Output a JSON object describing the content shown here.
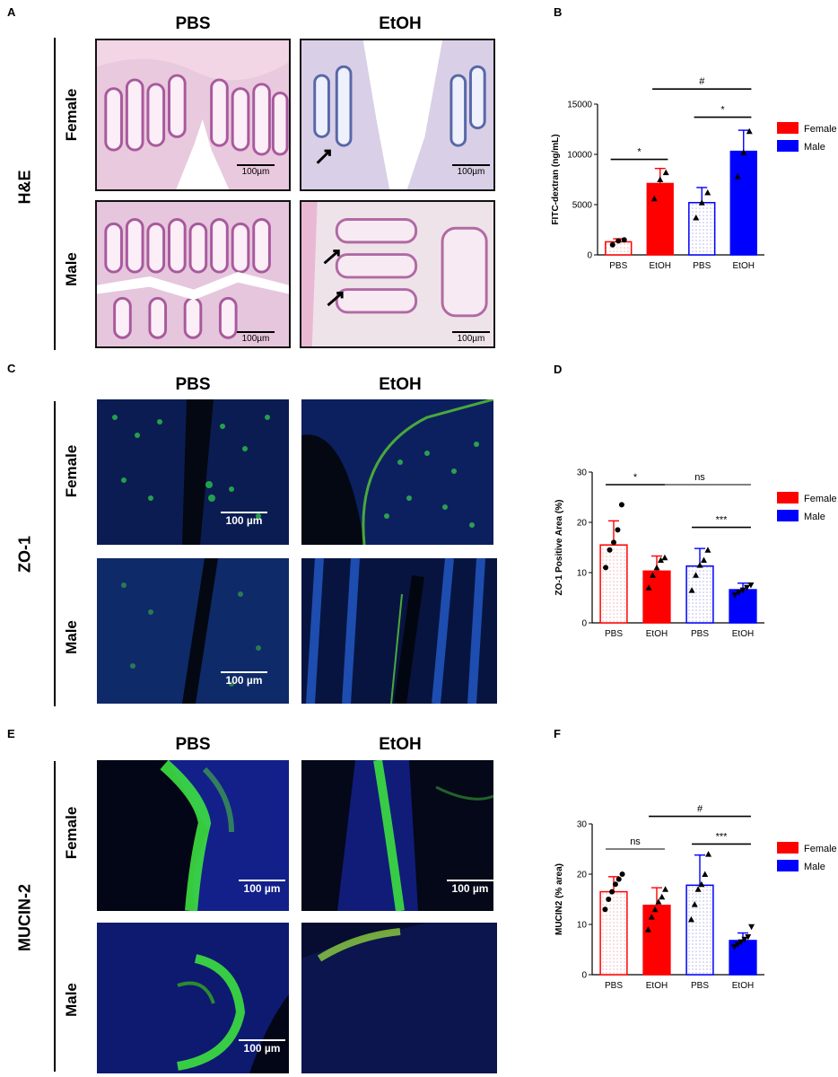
{
  "panels": {
    "A": {
      "label": "A",
      "stain": "H&E",
      "col_headers": [
        "PBS",
        "EtOH"
      ],
      "row_headers": [
        "Female",
        "Male"
      ],
      "scalebar_labels": [
        "100µm",
        "100µm",
        "100µm",
        "100µm"
      ]
    },
    "C": {
      "label": "C",
      "stain": "ZO-1",
      "col_headers": [
        "PBS",
        "EtOH"
      ],
      "row_headers": [
        "Female",
        "Male"
      ],
      "scalebar_labels": [
        "100 µm",
        "100 µm"
      ]
    },
    "E": {
      "label": "E",
      "stain": "MUCIN-2",
      "col_headers": [
        "PBS",
        "EtOH"
      ],
      "row_headers": [
        "Female",
        "Male"
      ],
      "scalebar_labels": [
        "100 µm",
        "100 µm",
        "100 µm"
      ]
    },
    "B": {
      "label": "B"
    },
    "D": {
      "label": "D"
    },
    "F": {
      "label": "F"
    }
  },
  "colors": {
    "female": "#ff0000",
    "male": "#0000ff",
    "female_light": "#f4b8b8",
    "male_light": "#b8b8f0"
  },
  "chart_data": [
    {
      "panel": "B",
      "type": "bar",
      "title": "",
      "xlabel": "",
      "ylabel": "FITC-dextran (ng/mL)",
      "ylim": [
        0,
        15000
      ],
      "yticks": [
        0,
        5000,
        10000,
        15000
      ],
      "categories": [
        "PBS",
        "EtOH",
        "PBS",
        "EtOH"
      ],
      "groups": [
        "Female",
        "Female",
        "Male",
        "Male"
      ],
      "values": [
        1300,
        7100,
        5200,
        10300
      ],
      "errors": [
        300,
        1500,
        1500,
        2100
      ],
      "points": [
        [
          1000,
          1400,
          1500
        ],
        [
          5600,
          7500,
          8200
        ],
        [
          3700,
          5200,
          6200
        ],
        [
          7800,
          10200,
          12300
        ]
      ],
      "legend": [
        "Female",
        "Male"
      ],
      "legend_position": "right",
      "significance": [
        {
          "from": 0,
          "to": 1,
          "label": "*",
          "y": 9500
        },
        {
          "from": 2,
          "to": 3,
          "label": "*",
          "y": 13700
        },
        {
          "from": 1,
          "to": 3,
          "label": "#",
          "y": 16500
        }
      ]
    },
    {
      "panel": "D",
      "type": "bar",
      "title": "",
      "xlabel": "",
      "ylabel": "ZO-1 Positive Area (%)",
      "ylim": [
        0,
        30
      ],
      "yticks": [
        0,
        10,
        20,
        30
      ],
      "categories": [
        "PBS",
        "EtOH",
        "PBS",
        "EtOH"
      ],
      "groups": [
        "Female",
        "Female",
        "Male",
        "Male"
      ],
      "values": [
        15.5,
        10.3,
        11.3,
        6.6
      ],
      "errors": [
        4.8,
        3.0,
        3.5,
        1.3
      ],
      "points": [
        [
          11.0,
          14.5,
          16.0,
          18.5,
          23.5
        ],
        [
          7.0,
          9.5,
          11.0,
          12.5,
          13.0
        ],
        [
          6.5,
          9.5,
          11.5,
          12.5,
          14.5
        ],
        [
          5.5,
          6.0,
          6.5,
          7.0,
          7.5
        ]
      ],
      "legend": [
        "Female",
        "Male"
      ],
      "legend_position": "right",
      "significance": [
        {
          "from": 0,
          "to": 1,
          "label": "*",
          "y": 27.5
        },
        {
          "from": 1,
          "to": 3,
          "label": "ns",
          "y": 27.5
        },
        {
          "from": 2,
          "to": 3,
          "label": "***",
          "y": 19.0
        }
      ]
    },
    {
      "panel": "F",
      "type": "bar",
      "title": "",
      "xlabel": "",
      "ylabel": "MUCIN2 (% area)",
      "ylim": [
        0,
        30
      ],
      "yticks": [
        0,
        10,
        20,
        30
      ],
      "categories": [
        "PBS",
        "EtOH",
        "PBS",
        "EtOH"
      ],
      "groups": [
        "Female",
        "Female",
        "Male",
        "Male"
      ],
      "values": [
        16.5,
        13.8,
        17.8,
        6.8
      ],
      "errors": [
        3.0,
        3.5,
        6.0,
        1.5
      ],
      "points": [
        [
          13.0,
          15.0,
          16.5,
          18.0,
          19.0,
          20.0
        ],
        [
          9.0,
          11.5,
          13.0,
          14.5,
          15.5,
          17.0
        ],
        [
          11.0,
          14.0,
          17.0,
          18.0,
          20.0,
          24.0
        ],
        [
          5.5,
          6.0,
          6.5,
          7.0,
          7.5,
          9.5
        ]
      ],
      "legend": [
        "Female",
        "Male"
      ],
      "legend_position": "right",
      "significance": [
        {
          "from": 0,
          "to": 1,
          "label": "ns",
          "y": 25.0
        },
        {
          "from": 2,
          "to": 3,
          "label": "***",
          "y": 26.0
        },
        {
          "from": 1,
          "to": 3,
          "label": "#",
          "y": 31.5
        }
      ]
    }
  ]
}
